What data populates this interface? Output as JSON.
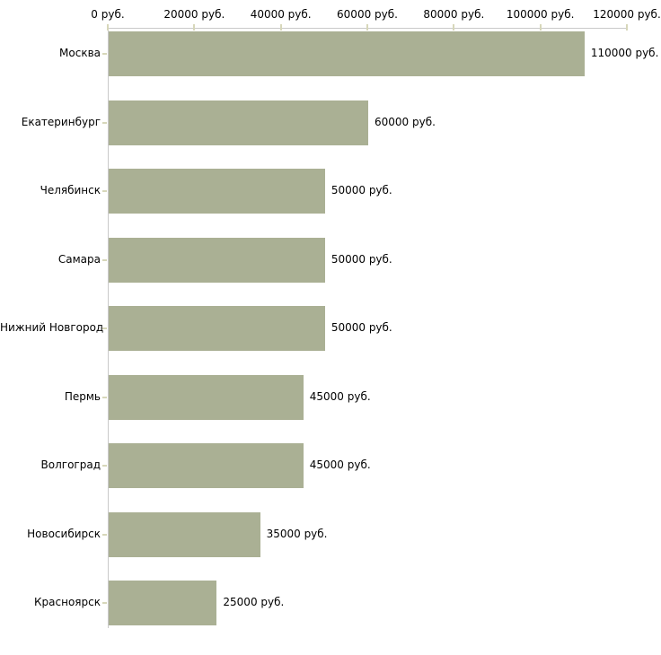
{
  "chart_data": {
    "type": "bar",
    "orientation": "horizontal",
    "title": "",
    "categories": [
      "Москва",
      "Екатеринбург",
      "Челябинск",
      "Самара",
      "Нижний Новгород",
      "Пермь",
      "Волгоград",
      "Новосибирск",
      "Красноярск"
    ],
    "values": [
      110000,
      60000,
      50000,
      50000,
      50000,
      45000,
      45000,
      35000,
      25000
    ],
    "value_labels": [
      "110000 руб.",
      "60000 руб.",
      "50000 руб.",
      "50000 руб.",
      "50000 руб.",
      "45000 руб.",
      "45000 руб.",
      "35000 руб.",
      "25000 руб."
    ],
    "x_axis": {
      "position": "top",
      "ticks": [
        0,
        20000,
        40000,
        60000,
        80000,
        100000,
        120000
      ],
      "tick_labels": [
        "0 руб.",
        "20000 руб.",
        "40000 руб.",
        "60000 руб.",
        "80000 руб.",
        "100000 руб.",
        "120000 руб."
      ],
      "xlim": [
        0,
        120000
      ]
    },
    "colors": {
      "bar": "#aab094",
      "axis_line": "#c9c9c9",
      "tick_mark": "#d7d7ba",
      "text": "#000000",
      "background": "#ffffff"
    },
    "grid": false,
    "legend": false
  }
}
